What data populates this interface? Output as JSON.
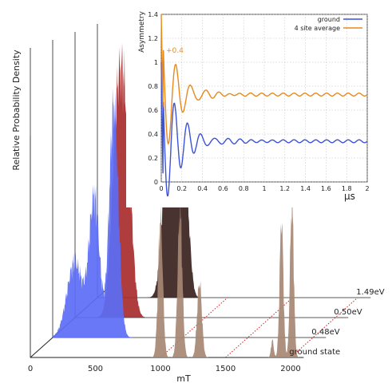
{
  "chart_data": [
    {
      "type": "area",
      "subtype": "3d-stacked-distributions",
      "ylabel": "Relative Probability Density",
      "xlabel": "mT",
      "x_ticks": [
        0,
        500,
        1000,
        1500,
        2000
      ],
      "xlim": [
        0,
        2100
      ],
      "series": [
        {
          "name": "1.49eV",
          "color": "#3a2220",
          "peaks": [
            {
              "x": 540,
              "y": 0.58,
              "w": 40
            },
            {
              "x": 600,
              "y": 1.0,
              "w": 35
            },
            {
              "x": 680,
              "y": 0.4,
              "w": 30
            }
          ]
        },
        {
          "name": "0.50eV",
          "color": "#a82c2c",
          "peaks": [
            {
              "x": 330,
              "y": 0.82,
              "w": 45
            },
            {
              "x": 400,
              "y": 0.55,
              "w": 40
            }
          ]
        },
        {
          "name": "0.48eV",
          "color": "#5b6cf5",
          "peaks": [
            {
              "x": 170,
              "y": 0.3,
              "w": 60
            },
            {
              "x": 320,
              "y": 0.55,
              "w": 40
            },
            {
              "x": 470,
              "y": 0.92,
              "w": 35
            }
          ]
        },
        {
          "name": "ground state",
          "color": "#a68773",
          "peaks": [
            {
              "x": 1000,
              "y": 0.55,
              "w": 18
            },
            {
              "x": 1150,
              "y": 0.58,
              "w": 18
            },
            {
              "x": 1300,
              "y": 0.3,
              "w": 18
            },
            {
              "x": 1930,
              "y": 0.55,
              "w": 14
            },
            {
              "x": 2010,
              "y": 0.62,
              "w": 14
            },
            {
              "x": 1860,
              "y": 0.07,
              "w": 10
            }
          ]
        }
      ],
      "grid": false
    },
    {
      "type": "line",
      "ylabel": "Asymmetry",
      "xlabel": "µs",
      "xlim": [
        0,
        2
      ],
      "ylim": [
        0,
        1.4
      ],
      "x_ticks": [
        "0",
        "0.2",
        "0.4",
        "0.6",
        "0.8",
        "1",
        "1.2",
        "1.4",
        "1.6",
        "1.8",
        "2"
      ],
      "y_ticks": [
        "0",
        "0.2",
        "0.4",
        "0.6",
        "0.8",
        "1",
        "1.2",
        "1.4"
      ],
      "grid": true,
      "legend": "top-right",
      "annotation": "+0.4",
      "series": [
        {
          "name": "ground",
          "color": "#3b52d9",
          "base": 0.34,
          "start": 1.0,
          "amp": 0.5,
          "decay": 0.17,
          "freq": 7.8
        },
        {
          "name": "4 site average",
          "color": "#e8891c",
          "base": 0.73,
          "start": 1.4,
          "amp": 0.3,
          "decay": 0.14,
          "freq": 7.0
        }
      ]
    }
  ]
}
